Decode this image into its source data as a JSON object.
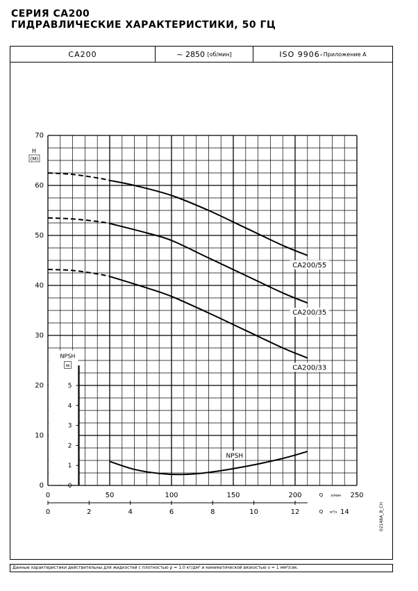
{
  "header": {
    "series": "СЕРИЯ CA200",
    "subtitle": "ГИДРАВЛИЧЕСКИЕ ХАРАКТЕРИСТИКИ, 50 ГЦ"
  },
  "table": {
    "model": "CA200",
    "speed_value": "~ 2850",
    "speed_unit": "[об/мин]",
    "standard": "ISO 9906",
    "standard_note": "Приложение А"
  },
  "footnote": "Данные характеристики действительны для жидкостей с плотностью ρ = 1.0 кг/дм³ и кинематической вязкостью υ = 1 мм²/сек.",
  "drawing_code": "02148A_B_CH",
  "chart_data": {
    "type": "line",
    "ylabel": "H",
    "yunit": "(M)",
    "xlabel": "Q",
    "xunit": "л/мин",
    "xlabel2": "Q",
    "xunit2": "м³/ч",
    "xlim": [
      0,
      250
    ],
    "ylim": [
      0,
      70
    ],
    "x_ticks": [
      0,
      50,
      100,
      150,
      200,
      250
    ],
    "y_ticks": [
      0,
      10,
      20,
      30,
      40,
      50,
      60,
      70
    ],
    "x2_ticks": [
      0,
      2,
      4,
      6,
      8,
      10,
      12,
      14
    ],
    "grid": true,
    "series": [
      {
        "name": "CA200/55",
        "dashed": [
          [
            0,
            62.5
          ],
          [
            20,
            62.2
          ],
          [
            40,
            61.5
          ],
          [
            50,
            61
          ]
        ],
        "values": [
          [
            50,
            61
          ],
          [
            70,
            60
          ],
          [
            100,
            58
          ],
          [
            130,
            55
          ],
          [
            160,
            51.5
          ],
          [
            190,
            48
          ],
          [
            210,
            46
          ]
        ]
      },
      {
        "name": "CA200/35",
        "dashed": [
          [
            0,
            53.5
          ],
          [
            20,
            53.3
          ],
          [
            40,
            52.8
          ],
          [
            50,
            52.4
          ]
        ],
        "values": [
          [
            50,
            52.4
          ],
          [
            80,
            50.5
          ],
          [
            100,
            49
          ],
          [
            130,
            45.5
          ],
          [
            160,
            42
          ],
          [
            190,
            38.5
          ],
          [
            210,
            36.5
          ]
        ]
      },
      {
        "name": "CA200/33",
        "dashed": [
          [
            0,
            43.2
          ],
          [
            20,
            43
          ],
          [
            40,
            42.3
          ],
          [
            50,
            41.8
          ]
        ],
        "values": [
          [
            50,
            41.8
          ],
          [
            80,
            39.5
          ],
          [
            100,
            37.8
          ],
          [
            130,
            34.5
          ],
          [
            160,
            31
          ],
          [
            190,
            27.5
          ],
          [
            210,
            25.5
          ]
        ]
      }
    ],
    "npsh": {
      "name": "NPSH",
      "label": "NPSH",
      "unit": "м",
      "ylim": [
        0,
        6
      ],
      "ticks": [
        0,
        1,
        2,
        3,
        4,
        5
      ],
      "values": [
        [
          50,
          1.2
        ],
        [
          70,
          0.8
        ],
        [
          90,
          0.6
        ],
        [
          110,
          0.55
        ],
        [
          130,
          0.65
        ],
        [
          160,
          0.95
        ],
        [
          190,
          1.35
        ],
        [
          210,
          1.7
        ]
      ]
    }
  }
}
